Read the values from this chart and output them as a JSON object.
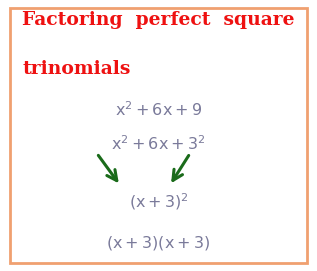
{
  "title_line1": "Factoring  perfect  square",
  "title_line2": "trinomials",
  "title_color": "#ee1111",
  "title_fontsize": 13.5,
  "border_color": "#f0a070",
  "border_linewidth": 2.0,
  "background_color": "#ffffff",
  "text_color": "#7a7a9a",
  "arrow_color": "#1a6b1a",
  "fig_width": 3.17,
  "fig_height": 2.71,
  "dpi": 100
}
